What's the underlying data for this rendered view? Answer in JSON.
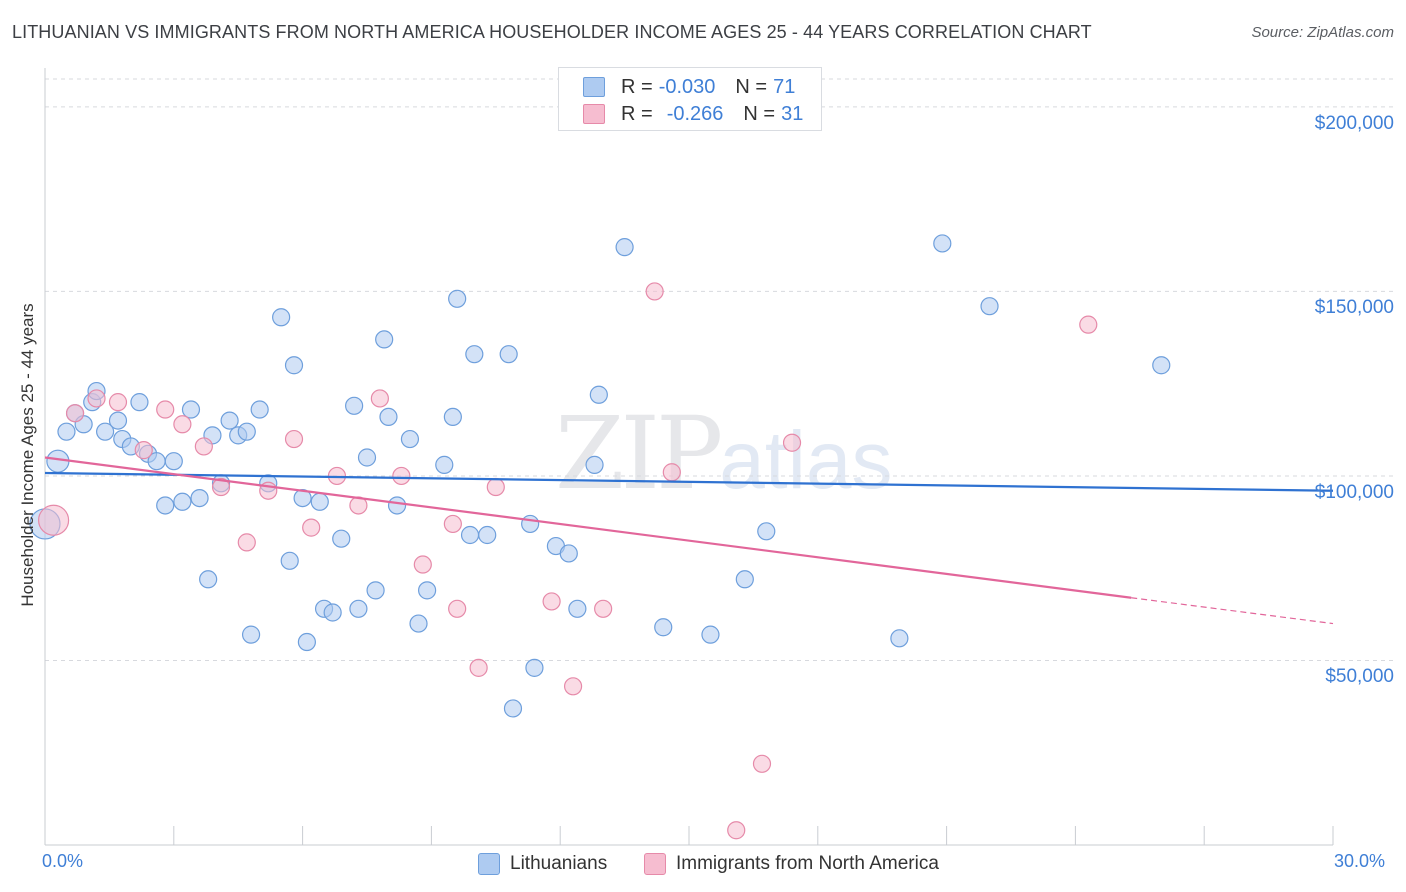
{
  "header": {
    "title": "LITHUANIAN VS IMMIGRANTS FROM NORTH AMERICA HOUSEHOLDER INCOME AGES 25 - 44 YEARS CORRELATION CHART",
    "source": "Source: ZipAtlas.com"
  },
  "watermark": {
    "zip": "ZIP",
    "atlas": "atlas"
  },
  "legend": {
    "rows": [
      {
        "r_label": "R =",
        "r_value": "-0.030",
        "n_label": "N =",
        "n_value": "71"
      },
      {
        "r_label": "R =",
        "r_value": "-0.266",
        "n_label": "N =",
        "n_value": "31"
      }
    ]
  },
  "colors": {
    "blue_fill": "#aecbf1",
    "blue_stroke": "#6e9fdc",
    "blue_line": "#2f72d1",
    "pink_fill": "#f6bdd0",
    "pink_stroke": "#e68aa9",
    "pink_line": "#e2669a",
    "grid": "#d7d9de",
    "axis_text": "#3f7fd6"
  },
  "chart_data": {
    "type": "scatter",
    "title": "LITHUANIAN VS IMMIGRANTS FROM NORTH AMERICA HOUSEHOLDER INCOME AGES 25 - 44 YEARS CORRELATION CHART",
    "xlabel": "",
    "ylabel": "Householder Income Ages 25 - 44 years",
    "xlim": [
      0,
      30
    ],
    "ylim": [
      0,
      210000
    ],
    "x_tick_labels": [
      "0.0%",
      "30.0%"
    ],
    "y_ticks": [
      50000,
      100000,
      150000,
      200000
    ],
    "y_tick_labels": [
      "$50,000",
      "$100,000",
      "$150,000",
      "$200,000"
    ],
    "grid": true,
    "legend_position": "bottom-center",
    "series": [
      {
        "name": "Lithuanians",
        "color": "#6e9fdc",
        "r": -0.03,
        "n": 71,
        "trend": {
          "x": [
            0,
            30
          ],
          "y": [
            100800,
            96000
          ]
        },
        "points": [
          {
            "x": 0.0,
            "y": 87000,
            "s": "l"
          },
          {
            "x": 0.3,
            "y": 104000,
            "s": "m"
          },
          {
            "x": 0.5,
            "y": 112000
          },
          {
            "x": 0.7,
            "y": 117000
          },
          {
            "x": 0.9,
            "y": 114000
          },
          {
            "x": 1.1,
            "y": 120000
          },
          {
            "x": 1.2,
            "y": 123000
          },
          {
            "x": 1.4,
            "y": 112000
          },
          {
            "x": 1.7,
            "y": 115000
          },
          {
            "x": 1.8,
            "y": 110000
          },
          {
            "x": 2.0,
            "y": 108000
          },
          {
            "x": 2.2,
            "y": 120000
          },
          {
            "x": 2.4,
            "y": 106000
          },
          {
            "x": 2.6,
            "y": 104000
          },
          {
            "x": 2.8,
            "y": 92000
          },
          {
            "x": 3.0,
            "y": 104000
          },
          {
            "x": 3.2,
            "y": 93000
          },
          {
            "x": 3.4,
            "y": 118000
          },
          {
            "x": 3.6,
            "y": 94000
          },
          {
            "x": 3.8,
            "y": 72000
          },
          {
            "x": 3.9,
            "y": 111000
          },
          {
            "x": 4.1,
            "y": 98000
          },
          {
            "x": 4.3,
            "y": 115000
          },
          {
            "x": 4.5,
            "y": 111000
          },
          {
            "x": 4.7,
            "y": 112000
          },
          {
            "x": 4.8,
            "y": 57000
          },
          {
            "x": 5.0,
            "y": 118000
          },
          {
            "x": 5.2,
            "y": 98000
          },
          {
            "x": 5.5,
            "y": 143000
          },
          {
            "x": 5.7,
            "y": 77000
          },
          {
            "x": 5.8,
            "y": 130000
          },
          {
            "x": 6.0,
            "y": 94000
          },
          {
            "x": 6.1,
            "y": 55000
          },
          {
            "x": 6.4,
            "y": 93000
          },
          {
            "x": 6.5,
            "y": 64000
          },
          {
            "x": 6.7,
            "y": 63000
          },
          {
            "x": 6.9,
            "y": 83000
          },
          {
            "x": 7.2,
            "y": 119000
          },
          {
            "x": 7.3,
            "y": 64000
          },
          {
            "x": 7.5,
            "y": 105000
          },
          {
            "x": 7.7,
            "y": 69000
          },
          {
            "x": 7.9,
            "y": 137000
          },
          {
            "x": 8.0,
            "y": 116000
          },
          {
            "x": 8.2,
            "y": 92000
          },
          {
            "x": 8.5,
            "y": 110000
          },
          {
            "x": 8.7,
            "y": 60000
          },
          {
            "x": 8.9,
            "y": 69000
          },
          {
            "x": 9.3,
            "y": 103000
          },
          {
            "x": 9.5,
            "y": 116000
          },
          {
            "x": 9.6,
            "y": 148000
          },
          {
            "x": 9.9,
            "y": 84000
          },
          {
            "x": 10.0,
            "y": 133000
          },
          {
            "x": 10.3,
            "y": 84000
          },
          {
            "x": 10.8,
            "y": 133000
          },
          {
            "x": 10.9,
            "y": 37000
          },
          {
            "x": 11.3,
            "y": 87000
          },
          {
            "x": 11.4,
            "y": 48000
          },
          {
            "x": 11.9,
            "y": 81000
          },
          {
            "x": 12.2,
            "y": 79000
          },
          {
            "x": 12.4,
            "y": 64000
          },
          {
            "x": 12.8,
            "y": 103000
          },
          {
            "x": 12.9,
            "y": 122000
          },
          {
            "x": 13.5,
            "y": 162000
          },
          {
            "x": 14.4,
            "y": 59000
          },
          {
            "x": 15.5,
            "y": 57000
          },
          {
            "x": 16.3,
            "y": 72000
          },
          {
            "x": 16.8,
            "y": 85000
          },
          {
            "x": 19.9,
            "y": 56000
          },
          {
            "x": 20.9,
            "y": 163000
          },
          {
            "x": 22.0,
            "y": 146000
          },
          {
            "x": 26.0,
            "y": 130000
          }
        ]
      },
      {
        "name": "Immigrants from North America",
        "color": "#e68aa9",
        "r": -0.266,
        "n": 31,
        "trend": {
          "x": [
            0,
            25.3
          ],
          "y": [
            105000,
            67000
          ]
        },
        "trend_dashed": {
          "x": [
            25.3,
            30
          ],
          "y": [
            67000,
            60000
          ]
        },
        "points": [
          {
            "x": 0.2,
            "y": 88000,
            "s": "l"
          },
          {
            "x": 0.7,
            "y": 117000
          },
          {
            "x": 1.2,
            "y": 121000
          },
          {
            "x": 1.7,
            "y": 120000
          },
          {
            "x": 2.3,
            "y": 107000
          },
          {
            "x": 2.8,
            "y": 118000
          },
          {
            "x": 3.2,
            "y": 114000
          },
          {
            "x": 3.7,
            "y": 108000
          },
          {
            "x": 4.1,
            "y": 97000
          },
          {
            "x": 4.7,
            "y": 82000
          },
          {
            "x": 5.2,
            "y": 96000
          },
          {
            "x": 5.8,
            "y": 110000
          },
          {
            "x": 6.2,
            "y": 86000
          },
          {
            "x": 6.8,
            "y": 100000
          },
          {
            "x": 7.3,
            "y": 92000
          },
          {
            "x": 7.8,
            "y": 121000
          },
          {
            "x": 8.3,
            "y": 100000
          },
          {
            "x": 8.8,
            "y": 76000
          },
          {
            "x": 9.5,
            "y": 87000
          },
          {
            "x": 9.6,
            "y": 64000
          },
          {
            "x": 10.1,
            "y": 48000
          },
          {
            "x": 10.5,
            "y": 97000
          },
          {
            "x": 11.8,
            "y": 66000
          },
          {
            "x": 12.3,
            "y": 43000
          },
          {
            "x": 13.0,
            "y": 64000
          },
          {
            "x": 14.2,
            "y": 150000
          },
          {
            "x": 14.6,
            "y": 101000
          },
          {
            "x": 16.1,
            "y": 4000
          },
          {
            "x": 16.7,
            "y": 22000
          },
          {
            "x": 17.4,
            "y": 109000
          },
          {
            "x": 24.3,
            "y": 141000
          }
        ]
      }
    ]
  }
}
